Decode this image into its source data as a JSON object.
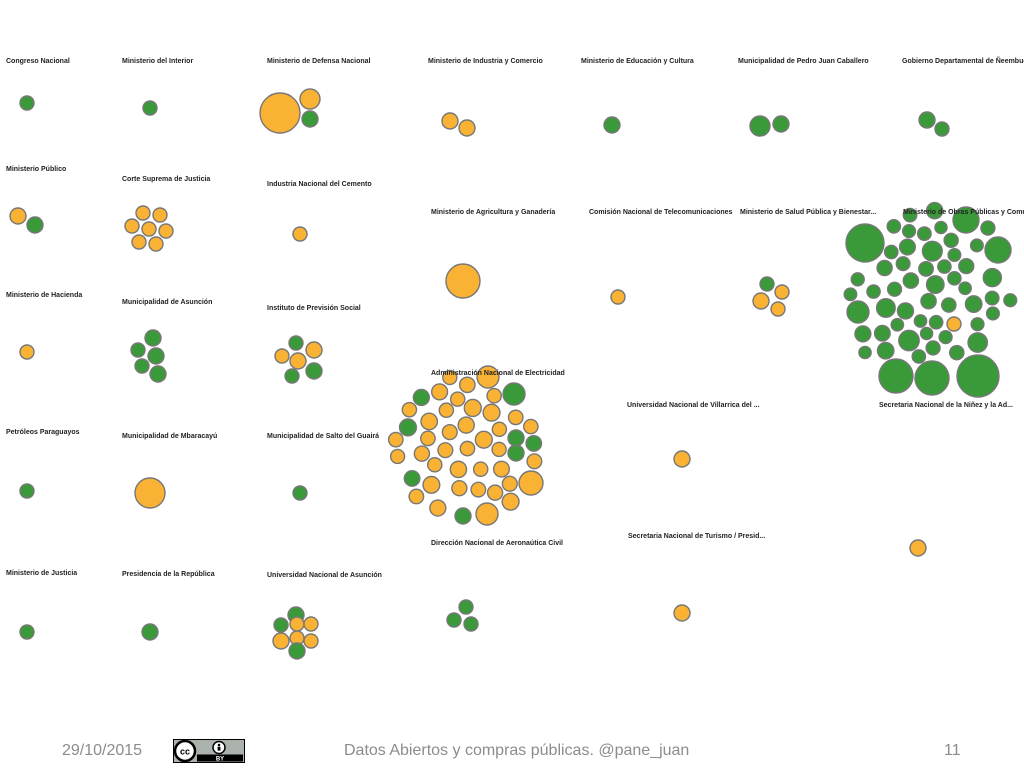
{
  "colors": {
    "green": "#3a9a3a",
    "orange": "#f9b233",
    "stroke": "#777777"
  },
  "groups": [
    {
      "label": "Congreso Nacional",
      "bubbles": [
        [
          "g",
          7
        ]
      ]
    },
    {
      "label": "Ministerio del Interior",
      "bubbles": [
        [
          "g",
          7
        ]
      ]
    },
    {
      "label": "Ministerio de Defensa Nacional",
      "bubbles": [
        [
          "o",
          20
        ],
        [
          "o",
          10
        ],
        [
          "g",
          8
        ]
      ]
    },
    {
      "label": "Ministerio de Industria y Comercio",
      "bubbles": [
        [
          "o",
          8
        ],
        [
          "o",
          8
        ]
      ]
    },
    {
      "label": "Ministerio de Educación y Cultura",
      "bubbles": [
        [
          "g",
          8
        ]
      ]
    },
    {
      "label": "Municipalidad de Pedro Juan Caballero",
      "bubbles": [
        [
          "g",
          10
        ],
        [
          "g",
          8
        ]
      ]
    },
    {
      "label": "Gobierno Departamental de Ñeembucú",
      "bubbles": [
        [
          "g",
          8
        ],
        [
          "g",
          7
        ]
      ]
    },
    {
      "label": "Ministerio Público",
      "bubbles": [
        [
          "o",
          8
        ],
        [
          "g",
          8
        ]
      ]
    },
    {
      "label": "Corte Suprema de Justicia",
      "bubbles": [
        [
          "o",
          7
        ],
        [
          "o",
          7
        ],
        [
          "o",
          7
        ],
        [
          "o",
          7
        ],
        [
          "o",
          7
        ],
        [
          "o",
          7
        ],
        [
          "o",
          7
        ]
      ]
    },
    {
      "label": "Industria Nacional del Cemento",
      "bubbles": [
        [
          "o",
          7
        ]
      ]
    },
    {
      "label": "Ministerio de Agricultura y Ganadería",
      "bubbles": [
        [
          "o",
          17
        ]
      ]
    },
    {
      "label": "Comisión Nacional de Telecomunicaciones",
      "bubbles": [
        [
          "o",
          7
        ]
      ]
    },
    {
      "label": "Ministerio de Salud Pública y Bienestar...",
      "bubbles": [
        [
          "g",
          7
        ],
        [
          "o",
          7
        ],
        [
          "o",
          8
        ],
        [
          "o",
          7
        ]
      ]
    },
    {
      "label": "Ministerio de Obras Públicas y Comunicaciones",
      "bubbles": "mopc"
    },
    {
      "label": "Ministerio de Hacienda",
      "bubbles": [
        [
          "o",
          7
        ]
      ]
    },
    {
      "label": "Municipalidad de Asunción",
      "bubbles": [
        [
          "g",
          8
        ],
        [
          "g",
          7
        ],
        [
          "g",
          8
        ],
        [
          "g",
          7
        ],
        [
          "g",
          8
        ]
      ]
    },
    {
      "label": "Instituto de Previsión Social",
      "bubbles": [
        [
          "g",
          7
        ],
        [
          "o",
          8
        ],
        [
          "o",
          7
        ],
        [
          "o",
          8
        ],
        [
          "g",
          8
        ],
        [
          "g",
          7
        ]
      ]
    },
    {
      "label": "Administración Nacional de Electricidad",
      "bubbles": "ande"
    },
    {
      "label": "Universidad Nacional de Villarrica del ...",
      "bubbles": [
        [
          "o",
          8
        ]
      ]
    },
    {
      "label": "Secretaria Nacional de la Niñez y la Ad...",
      "bubbles": []
    },
    {
      "label": "Petróleos Paraguayos",
      "bubbles": [
        [
          "g",
          7
        ]
      ]
    },
    {
      "label": "Municipalidad de Mbaracayú",
      "bubbles": [
        [
          "o",
          15
        ]
      ]
    },
    {
      "label": "Municipalidad de Salto del Guairá",
      "bubbles": [
        [
          "g",
          7
        ]
      ]
    },
    {
      "label": "Dirección Nacional de Aeronaútica Civil",
      "bubbles": [
        [
          "g",
          7
        ],
        [
          "g",
          7
        ],
        [
          "g",
          7
        ]
      ]
    },
    {
      "label": "Secretaria Nacional de Turismo / Presid...",
      "bubbles": [
        [
          "o",
          8
        ]
      ]
    },
    {
      "label": "Ministerio de Justicia",
      "bubbles": [
        [
          "g",
          7
        ]
      ]
    },
    {
      "label": "Presidencia de la República",
      "bubbles": [
        [
          "g",
          8
        ]
      ]
    },
    {
      "label": "Universidad Nacional de Asunción",
      "bubbles": [
        [
          "g",
          8
        ],
        [
          "g",
          7
        ],
        [
          "o",
          7
        ],
        [
          "o",
          7
        ],
        [
          "o",
          8
        ],
        [
          "o",
          7
        ],
        [
          "o",
          7
        ],
        [
          "g",
          8
        ]
      ]
    },
    {
      "label": "",
      "bubbles": [
        [
          "o",
          8
        ]
      ]
    }
  ],
  "footer": {
    "date": "29/10/2015",
    "title": "Datos Abiertos y compras públicas. @pane_juan",
    "page": "11",
    "license_text": "BY"
  }
}
